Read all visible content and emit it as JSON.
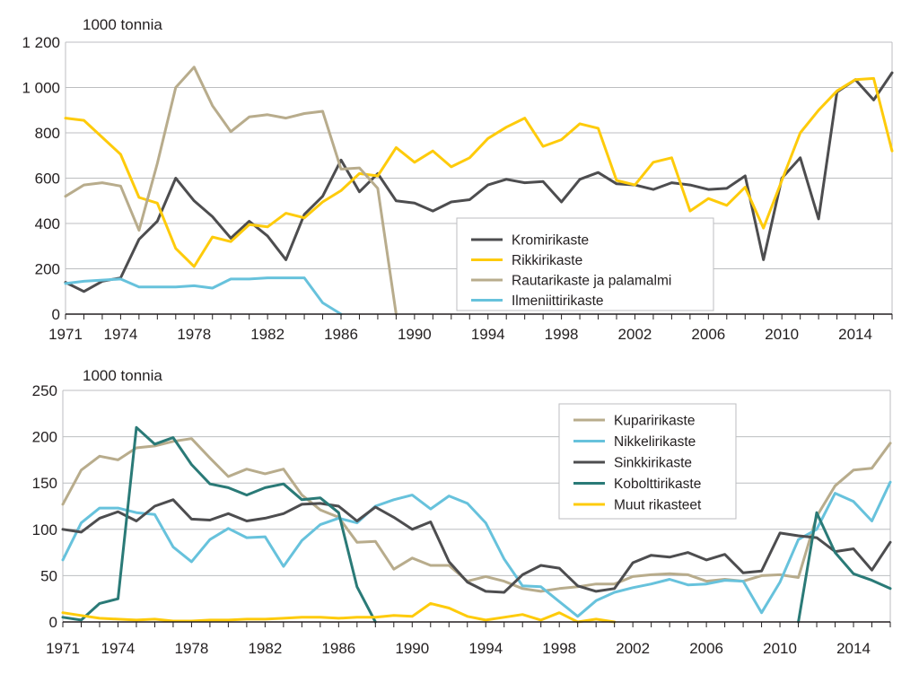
{
  "chart_data": [
    {
      "type": "line",
      "unit_label": "1000 tonnia",
      "x": [
        1971,
        1972,
        1973,
        1974,
        1975,
        1976,
        1977,
        1978,
        1979,
        1980,
        1981,
        1982,
        1983,
        1984,
        1985,
        1986,
        1987,
        1988,
        1989,
        1990,
        1991,
        1992,
        1993,
        1994,
        1995,
        1996,
        1997,
        1998,
        1999,
        2000,
        2001,
        2002,
        2003,
        2004,
        2005,
        2006,
        2007,
        2008,
        2009,
        2010,
        2011,
        2012,
        2013,
        2014,
        2015,
        2016
      ],
      "xticks": [
        "1971",
        "1974",
        "1978",
        "1982",
        "1986",
        "1990",
        "1994",
        "1998",
        "2002",
        "2006",
        "2010",
        "2014"
      ],
      "yticks": [
        "0",
        "200",
        "400",
        "600",
        "800",
        "1 000",
        "1 200"
      ],
      "ylim": [
        0,
        1200
      ],
      "xlim": [
        1971,
        2016
      ],
      "grid": true,
      "legend_position": "lower-center-right",
      "series": [
        {
          "name": "Kromirikaste",
          "color": "#4d4d4f",
          "values": [
            140,
            100,
            145,
            160,
            330,
            410,
            600,
            500,
            430,
            335,
            410,
            345,
            240,
            440,
            520,
            680,
            540,
            620,
            500,
            490,
            455,
            495,
            505,
            570,
            595,
            580,
            585,
            495,
            595,
            625,
            575,
            570,
            550,
            580,
            570,
            550,
            555,
            610,
            240,
            600,
            690,
            420,
            980,
            1035,
            945,
            1065
          ]
        },
        {
          "name": "Rikkirikaste",
          "color": "#fecb0b",
          "values": [
            865,
            855,
            780,
            705,
            515,
            490,
            290,
            210,
            340,
            320,
            395,
            385,
            445,
            425,
            495,
            545,
            620,
            610,
            735,
            670,
            720,
            650,
            690,
            775,
            825,
            865,
            740,
            770,
            840,
            820,
            590,
            570,
            670,
            690,
            455,
            510,
            480,
            560,
            380,
            590,
            800,
            900,
            985,
            1035,
            1040,
            720
          ]
        },
        {
          "name": "Rautarikaste ja palamalmi",
          "color": "#b8ac8c",
          "values": [
            520,
            570,
            580,
            565,
            370,
            665,
            1000,
            1090,
            920,
            805,
            870,
            880,
            865,
            885,
            895,
            640,
            645,
            555,
            0,
            null,
            null,
            null,
            null,
            null,
            null,
            null,
            null,
            null,
            null,
            null,
            null,
            null,
            null,
            null,
            null,
            null,
            null,
            null,
            null,
            null,
            null,
            null,
            null,
            null,
            null,
            null
          ]
        },
        {
          "name": "Ilmeniittirikaste",
          "color": "#67c2dc",
          "values": [
            135,
            145,
            150,
            155,
            120,
            120,
            120,
            125,
            115,
            155,
            155,
            160,
            160,
            160,
            50,
            0,
            null,
            null,
            null,
            null,
            null,
            null,
            null,
            null,
            null,
            null,
            null,
            null,
            null,
            null,
            null,
            null,
            null,
            null,
            null,
            null,
            null,
            null,
            null,
            null,
            null,
            null,
            null,
            null,
            null,
            null
          ]
        }
      ]
    },
    {
      "type": "line",
      "unit_label": "1000 tonnia",
      "x": [
        1971,
        1972,
        1973,
        1974,
        1975,
        1976,
        1977,
        1978,
        1979,
        1980,
        1981,
        1982,
        1983,
        1984,
        1985,
        1986,
        1987,
        1988,
        1989,
        1990,
        1991,
        1992,
        1993,
        1994,
        1995,
        1996,
        1997,
        1998,
        1999,
        2000,
        2001,
        2002,
        2003,
        2004,
        2005,
        2006,
        2007,
        2008,
        2009,
        2010,
        2011,
        2012,
        2013,
        2014,
        2015,
        2016
      ],
      "xticks": [
        "1971",
        "1974",
        "1978",
        "1982",
        "1986",
        "1990",
        "1994",
        "1998",
        "2002",
        "2006",
        "2010",
        "2014"
      ],
      "yticks": [
        "0",
        "50",
        "100",
        "150",
        "200",
        "250"
      ],
      "ylim": [
        0,
        250
      ],
      "xlim": [
        1971,
        2016
      ],
      "grid": true,
      "legend_position": "top-right",
      "series": [
        {
          "name": "Kuparirikaste",
          "color": "#b8ac8c",
          "values": [
            127,
            164,
            179,
            175,
            188,
            190,
            195,
            198,
            177,
            157,
            165,
            160,
            165,
            137,
            121,
            113,
            86,
            87,
            57,
            69,
            61,
            61,
            44,
            49,
            44,
            36,
            33,
            36,
            38,
            41,
            41,
            49,
            51,
            52,
            51,
            44,
            46,
            44,
            50,
            51,
            48,
            114,
            147,
            164,
            166,
            193
          ]
        },
        {
          "name": "Nikkelirikaste",
          "color": "#67c2dc",
          "values": [
            67,
            107,
            123,
            123,
            118,
            116,
            81,
            65,
            89,
            101,
            91,
            92,
            60,
            88,
            105,
            112,
            107,
            125,
            132,
            137,
            122,
            136,
            128,
            107,
            68,
            39,
            38,
            22,
            6,
            23,
            32,
            37,
            41,
            46,
            40,
            41,
            45,
            44,
            10,
            43,
            89,
            100,
            139,
            130,
            109,
            151
          ]
        },
        {
          "name": "Sinkkirikaste",
          "color": "#4d4d4f",
          "values": [
            100,
            97,
            112,
            119,
            109,
            125,
            132,
            111,
            110,
            117,
            109,
            112,
            117,
            127,
            128,
            125,
            109,
            124,
            113,
            100,
            108,
            65,
            43,
            33,
            32,
            51,
            61,
            58,
            39,
            33,
            36,
            64,
            72,
            70,
            75,
            67,
            73,
            53,
            55,
            96,
            93,
            91,
            76,
            79,
            56,
            86
          ]
        },
        {
          "name": "Kobolttirikaste",
          "color": "#2a7a77",
          "values": [
            5,
            2,
            20,
            25,
            210,
            192,
            199,
            170,
            149,
            145,
            137,
            145,
            149,
            132,
            134,
            118,
            38,
            0,
            null,
            null,
            null,
            null,
            null,
            null,
            null,
            null,
            null,
            null,
            null,
            null,
            null,
            null,
            null,
            null,
            null,
            null,
            null,
            null,
            null,
            null,
            0,
            118,
            75,
            52,
            45,
            36
          ]
        },
        {
          "name": "Muut rikasteet",
          "color": "#fecb0b",
          "values": [
            10,
            7,
            4,
            3,
            2,
            3,
            1,
            1,
            2,
            2,
            3,
            3,
            4,
            5,
            5,
            4,
            5,
            5,
            7,
            6,
            20,
            15,
            6,
            2,
            5,
            8,
            2,
            10,
            0,
            3,
            0,
            null,
            null,
            null,
            null,
            null,
            null,
            null,
            null,
            null,
            null,
            null,
            null,
            null,
            null,
            null
          ]
        }
      ]
    }
  ]
}
